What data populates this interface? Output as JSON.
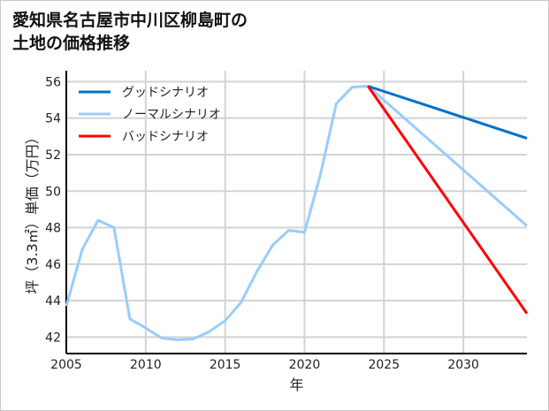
{
  "title_lines": [
    "愛知県名古屋市中川区柳島町の",
    "土地の価格推移"
  ],
  "chart_data": {
    "type": "line",
    "title": "愛知県名古屋市中川区柳島町の土地の価格推移",
    "xlabel": "年",
    "ylabel": "坪（3.3㎡）単価（万円）",
    "xlim": [
      2005,
      2034
    ],
    "ylim": [
      41.1,
      56.6
    ],
    "xticks": [
      2005,
      2010,
      2015,
      2020,
      2025,
      2030
    ],
    "yticks": [
      42,
      44,
      46,
      48,
      50,
      52,
      54,
      56
    ],
    "grid": true,
    "legend_position": "top-left",
    "series": [
      {
        "name": "グッドシナリオ",
        "color": "#0070C8",
        "x": [
          2024,
          2034
        ],
        "values": [
          55.75,
          52.9
        ]
      },
      {
        "name": "ノーマルシナリオ",
        "color": "#99CCFF",
        "x": [
          2005,
          2006,
          2007,
          2008,
          2009,
          2010,
          2011,
          2012,
          2013,
          2014,
          2015,
          2016,
          2017,
          2018,
          2019,
          2020,
          2021,
          2022,
          2023,
          2024,
          2034
        ],
        "values": [
          43.7,
          46.8,
          48.4,
          48.0,
          43.0,
          42.5,
          41.95,
          41.85,
          41.9,
          42.3,
          42.9,
          43.9,
          45.6,
          47.05,
          47.85,
          47.75,
          50.9,
          54.8,
          55.7,
          55.75,
          48.1
        ]
      },
      {
        "name": "バッドシナリオ",
        "color": "#FF0000",
        "x": [
          2024,
          2034
        ],
        "values": [
          55.75,
          43.3
        ]
      }
    ]
  }
}
